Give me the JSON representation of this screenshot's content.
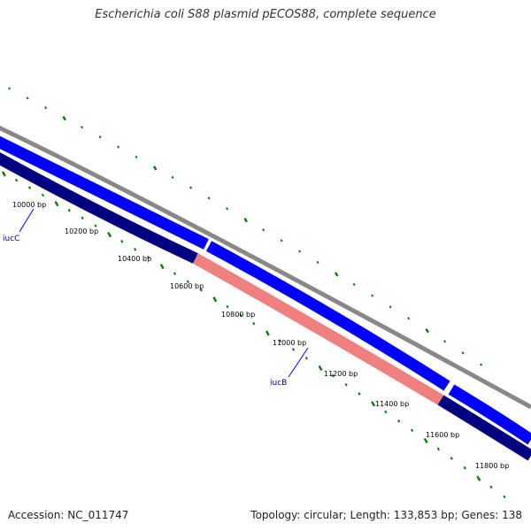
{
  "title": "Escherichia coli S88 plasmid pECOS88, complete sequence",
  "footer": {
    "accession": "Accession: NC_011747",
    "summary": "Topology: circular; Length: 133,853 bp; Genes: 138"
  },
  "map": {
    "tick_labels": [
      "10000 bp",
      "10200 bp",
      "10400 bp",
      "10600 bp",
      "10800 bp",
      "11000 bp",
      "11200 bp",
      "11400 bp",
      "11600 bp",
      "11800 bp"
    ],
    "gene_labels": [
      {
        "name": "iucC",
        "color": "#00008b"
      },
      {
        "name": "iucB",
        "color": "#00008b"
      }
    ],
    "colors": {
      "backbone": "#888888",
      "forward_feature": "#0000ff",
      "reverse_feature": "#000080",
      "highlight_feature": "#f08080",
      "tick_marks": "#008000",
      "tick_text": "#000000",
      "gene_label": "#00008b"
    }
  }
}
